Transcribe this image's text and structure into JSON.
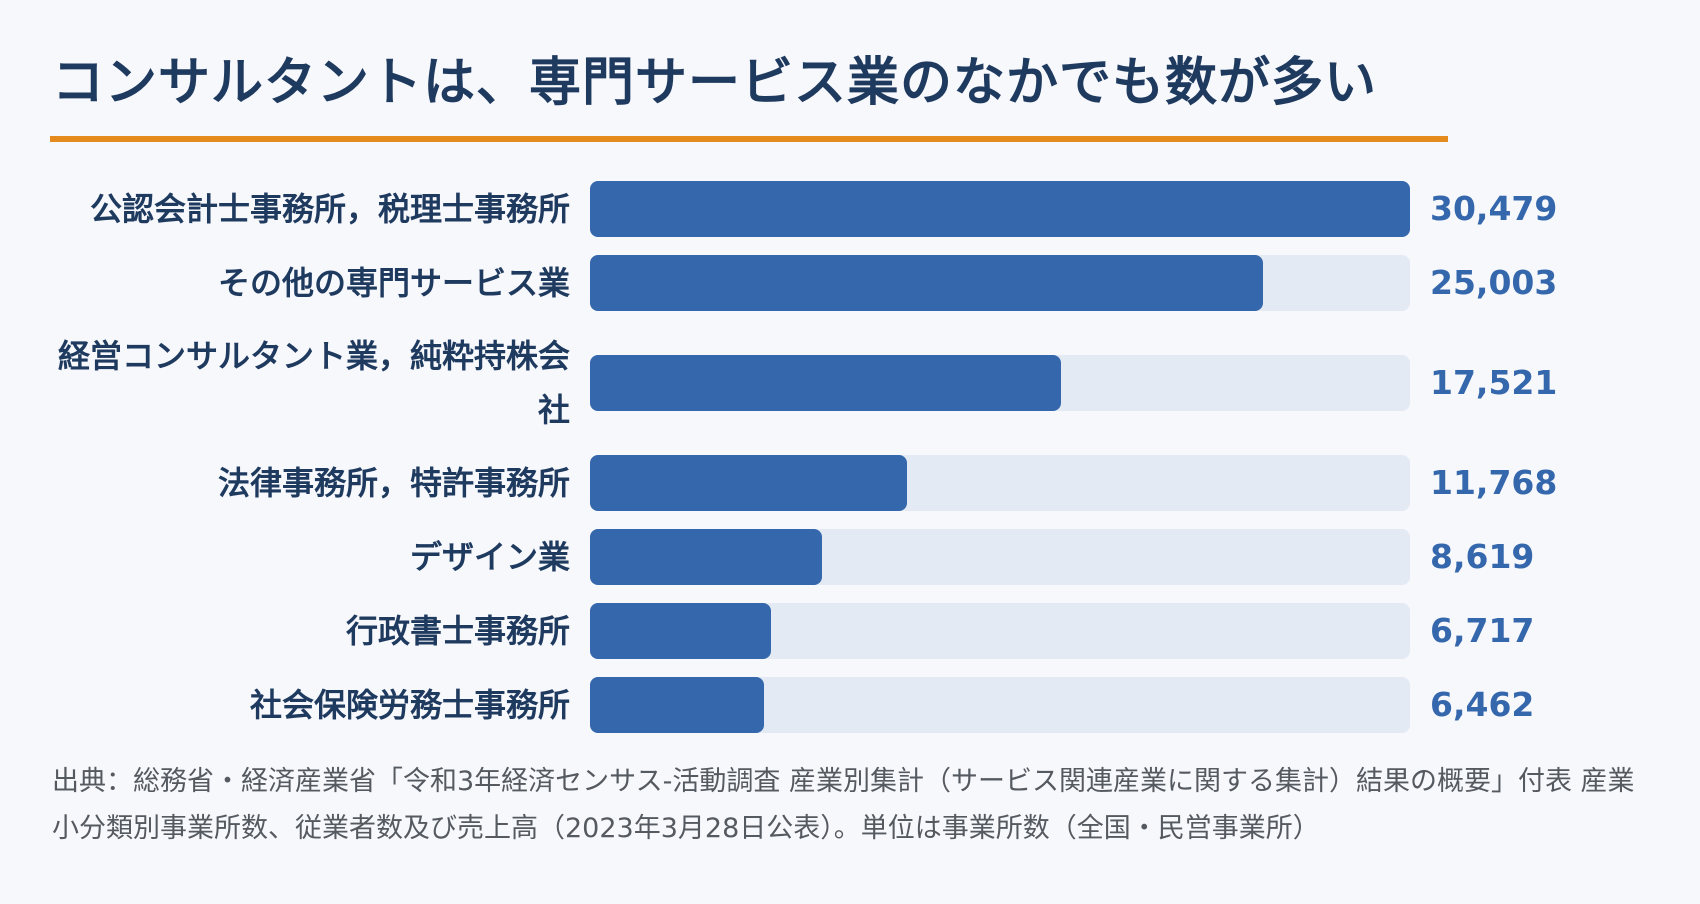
{
  "title": "コンサルタントは、専門サービス業のなかでも数が多い",
  "source": "出典：総務省・経済産業省「令和3年経済センサス‐活動調査 産業別集計（サービス関連産業に関する集計）結果の概要」付表 産業小分類別事業所数、従業者数及び売上高（2023年3月28日公表）。単位は事業所数（全国・民営事業所）",
  "colors": {
    "bar": "#3567ac",
    "track": "#e4eaf3",
    "accent_rule": "#e58b1e",
    "text": "#1f3a5f"
  },
  "chart_data": {
    "type": "bar",
    "orientation": "horizontal",
    "categories": [
      "公認会計士事務所，税理士事務所",
      "その他の専門サービス業",
      "経営コンサルタント業，純粋持株会社",
      "法律事務所，特許事務所",
      "デザイン業",
      "行政書士事務所",
      "社会保険労務士事務所"
    ],
    "values": [
      30479,
      25003,
      17521,
      11768,
      8619,
      6717,
      6462
    ],
    "value_labels": [
      "30,479",
      "25,003",
      "17,521",
      "11,768",
      "8,619",
      "6,717",
      "6,462"
    ],
    "xlim": [
      0,
      30479
    ],
    "grid": false,
    "title": "コンサルタントは、専門サービス業のなかでも数が多い",
    "xlabel": "",
    "ylabel": ""
  }
}
